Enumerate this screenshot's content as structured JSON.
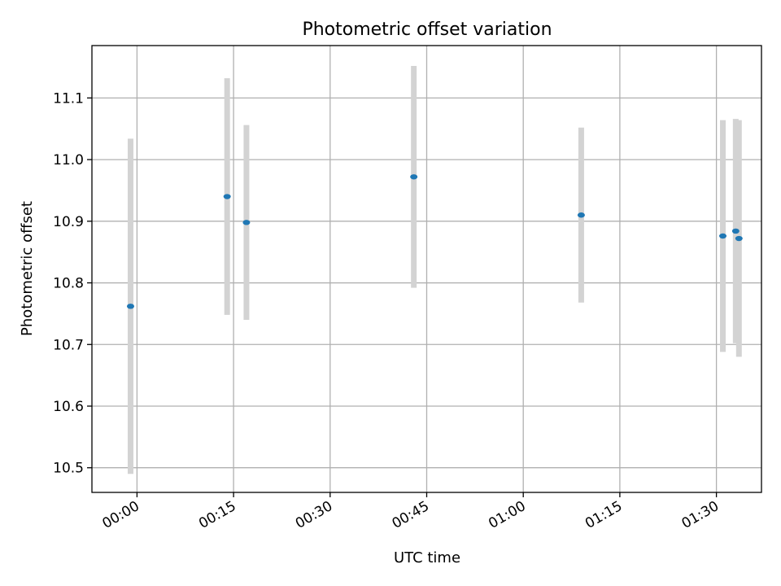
{
  "chart_data": {
    "type": "scatter",
    "title": "Photometric offset variation",
    "xlabel": "UTC time",
    "ylabel": "Photometric offset",
    "x_ticks": [
      "00:00",
      "00:15",
      "00:30",
      "00:45",
      "01:00",
      "01:15",
      "01:30"
    ],
    "y_ticks": [
      "10.5",
      "10.6",
      "10.7",
      "10.8",
      "10.9",
      "11.0",
      "11.1"
    ],
    "xlim": [
      "23:53",
      "01:37"
    ],
    "ylim": [
      10.46,
      11.185
    ],
    "grid": true,
    "point_color": "#1f77b4",
    "errorbar_color": "#d3d3d3",
    "points": [
      {
        "x": "23:59",
        "y": 10.762,
        "err": 0.272
      },
      {
        "x": "00:14",
        "y": 10.94,
        "err": 0.192
      },
      {
        "x": "00:17",
        "y": 10.898,
        "err": 0.158
      },
      {
        "x": "00:43",
        "y": 10.972,
        "err": 0.18
      },
      {
        "x": "01:09",
        "y": 10.91,
        "err": 0.142
      },
      {
        "x": "01:31",
        "y": 10.876,
        "err": 0.188
      },
      {
        "x": "01:33",
        "y": 10.884,
        "err": 0.182
      },
      {
        "x": "01:33.5",
        "y": 10.872,
        "err": 0.192
      }
    ]
  }
}
